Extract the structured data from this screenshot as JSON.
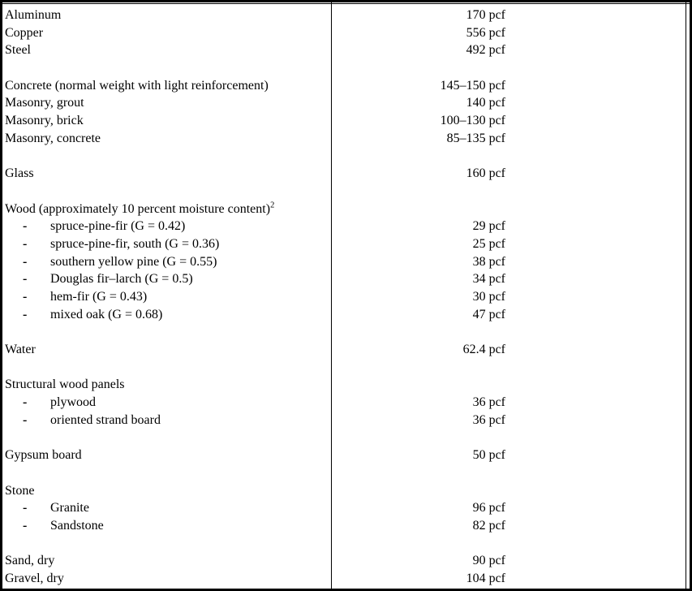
{
  "table": {
    "title": "material-density-table",
    "unit": "pcf",
    "bullet_glyph": "-",
    "columns": [
      "material",
      "density"
    ],
    "rows": [
      {
        "label": "Aluminum",
        "value": "170 pcf"
      },
      {
        "label": "Copper",
        "value": "556 pcf"
      },
      {
        "label": "Steel",
        "value": "492 pcf"
      },
      {
        "spacer": true
      },
      {
        "label": "Concrete (normal weight with light reinforcement)",
        "value": "145–150 pcf"
      },
      {
        "label": "Masonry, grout",
        "value": "140 pcf"
      },
      {
        "label": "Masonry, brick",
        "value": "100–130 pcf"
      },
      {
        "label": "Masonry, concrete",
        "value": "85–135 pcf"
      },
      {
        "spacer": true
      },
      {
        "label": "Glass",
        "value": "160 pcf"
      },
      {
        "spacer": true
      },
      {
        "label": "Wood (approximately 10 percent moisture content)",
        "sup": "2",
        "value": ""
      },
      {
        "label": "spruce-pine-fir (G = 0.42)",
        "indent": true,
        "value": "29 pcf"
      },
      {
        "label": "spruce-pine-fir, south (G = 0.36)",
        "indent": true,
        "value": "25 pcf"
      },
      {
        "label": "southern yellow pine (G = 0.55)",
        "indent": true,
        "value": "38 pcf"
      },
      {
        "label": "Douglas fir–larch (G = 0.5)",
        "indent": true,
        "value": "34 pcf"
      },
      {
        "label": "hem-fir (G = 0.43)",
        "indent": true,
        "value": "30 pcf"
      },
      {
        "label": "mixed oak (G = 0.68)",
        "indent": true,
        "value": "47 pcf"
      },
      {
        "spacer": true
      },
      {
        "label": "Water",
        "value": "62.4 pcf"
      },
      {
        "spacer": true
      },
      {
        "label": "Structural wood panels",
        "value": ""
      },
      {
        "label": "plywood",
        "indent": true,
        "value": "36 pcf"
      },
      {
        "label": "oriented strand board",
        "indent": true,
        "value": "36 pcf"
      },
      {
        "spacer": true
      },
      {
        "label": "Gypsum board",
        "value": "50 pcf"
      },
      {
        "spacer": true
      },
      {
        "label": "Stone",
        "value": ""
      },
      {
        "label": "Granite",
        "indent": true,
        "value": "96 pcf"
      },
      {
        "label": "Sandstone",
        "indent": true,
        "value": "82 pcf"
      },
      {
        "spacer": true
      },
      {
        "label": "Sand, dry",
        "value": "90 pcf"
      },
      {
        "label": "Gravel, dry",
        "value": "104 pcf"
      }
    ],
    "borders": {
      "frame_color": "#000000",
      "rule_color": "#000000"
    }
  }
}
